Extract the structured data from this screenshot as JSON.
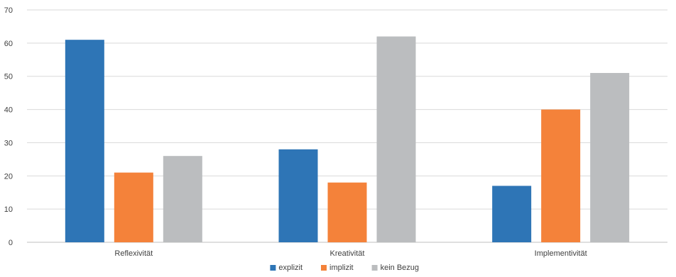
{
  "chart_data": {
    "type": "bar",
    "title": "",
    "xlabel": "",
    "ylabel": "",
    "categories": [
      "Reflexivität",
      "Kreativität",
      "Implementivität"
    ],
    "series": [
      {
        "name": "explizit",
        "color": "#2e75b6",
        "values": [
          61,
          28,
          17
        ]
      },
      {
        "name": "implizit",
        "color": "#f4823a",
        "values": [
          21,
          18,
          40
        ]
      },
      {
        "name": "kein Bezug",
        "color": "#bbbdbf",
        "values": [
          26,
          62,
          51
        ]
      }
    ],
    "ylim": [
      0,
      70
    ],
    "yticks": [
      0,
      10,
      20,
      30,
      40,
      50,
      60,
      70
    ],
    "grid": true,
    "legend": "bottom-center"
  }
}
